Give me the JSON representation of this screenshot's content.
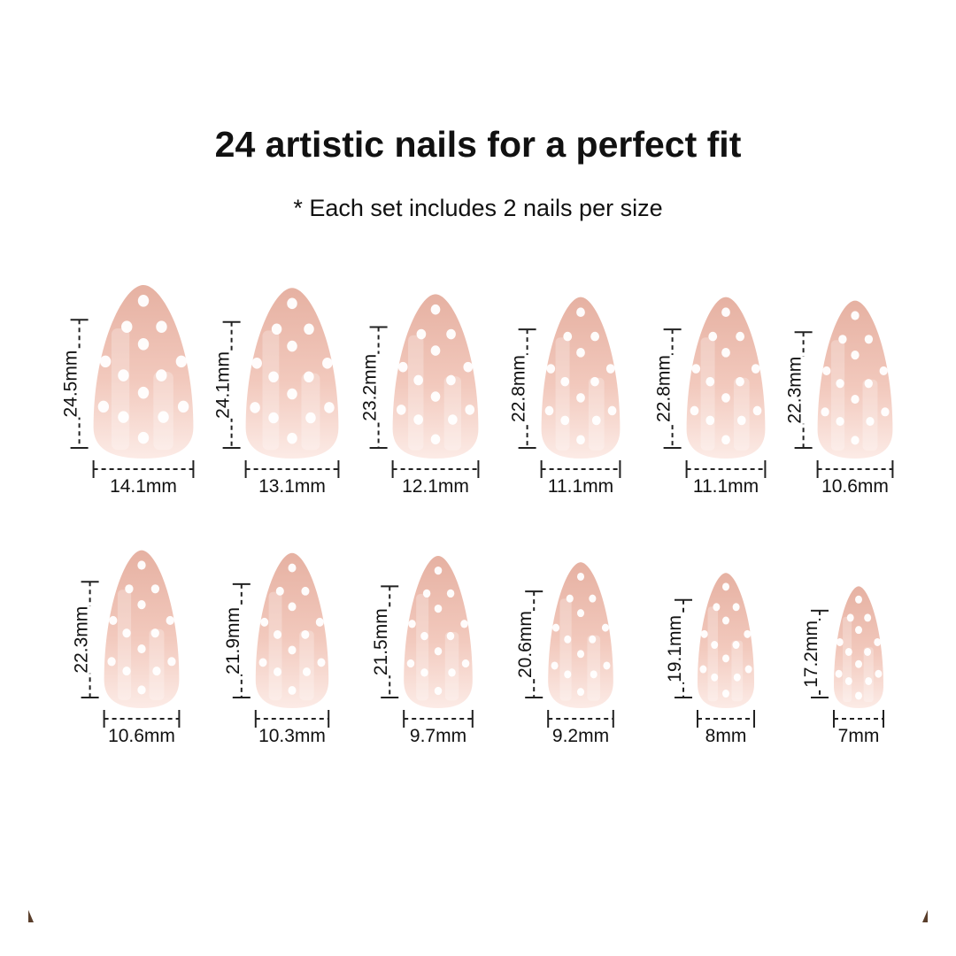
{
  "title": "24 artistic nails for a perfect fit",
  "subtitle": "* Each set includes 2 nails per size",
  "colors": {
    "nail_tip": "#e6b1a2",
    "nail_base": "#fcebe6",
    "dots": "#ffffff",
    "lines": "#222222"
  },
  "unit": "mm",
  "rows": [
    [
      {
        "length": "24.5mm",
        "width": "14.1mm",
        "l": 24.5,
        "w": 14.1
      },
      {
        "length": "24.1mm",
        "width": "13.1mm",
        "l": 24.1,
        "w": 13.1
      },
      {
        "length": "23.2mm",
        "width": "12.1mm",
        "l": 23.2,
        "w": 12.1
      },
      {
        "length": "22.8mm",
        "width": "11.1mm",
        "l": 22.8,
        "w": 11.1
      },
      {
        "length": "22.8mm",
        "width": "11.1mm",
        "l": 22.8,
        "w": 11.1
      },
      {
        "length": "22.3mm",
        "width": "10.6mm",
        "l": 22.3,
        "w": 10.6
      }
    ],
    [
      {
        "length": "22.3mm",
        "width": "10.6mm",
        "l": 22.3,
        "w": 10.6
      },
      {
        "length": "21.9mm",
        "width": "10.3mm",
        "l": 21.9,
        "w": 10.3
      },
      {
        "length": "21.5mm",
        "width": "9.7mm",
        "l": 21.5,
        "w": 9.7
      },
      {
        "length": "20.6mm",
        "width": "9.2mm",
        "l": 20.6,
        "w": 9.2
      },
      {
        "length": "19.1mm",
        "width": "8mm",
        "l": 19.1,
        "w": 8
      },
      {
        "length": "17.2mm",
        "width": "7mm",
        "l": 17.2,
        "w": 7
      }
    ]
  ]
}
